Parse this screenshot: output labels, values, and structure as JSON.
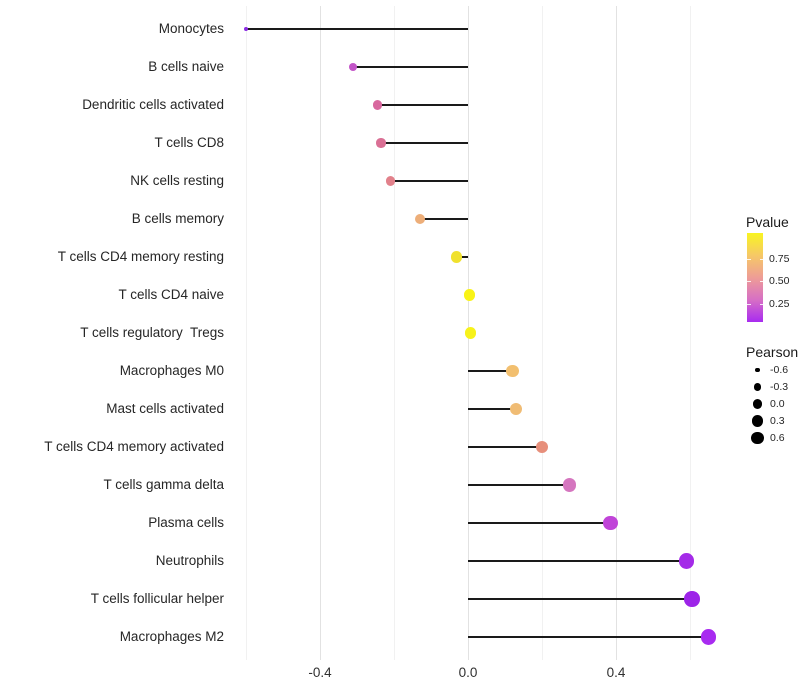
{
  "figure": {
    "background": "#FFFFFF"
  },
  "chart_data": {
    "type": "scatter",
    "subtype": "horizontal-lollipop",
    "title": "",
    "xlabel": "",
    "ylabel": "",
    "xlim": [
      -0.68,
      0.72
    ],
    "grid": {
      "values": [
        -0.6,
        -0.4,
        -0.2,
        0.0,
        0.2,
        0.4,
        0.6
      ],
      "major": [
        -0.4,
        0.0,
        0.4
      ],
      "horizontal": false
    },
    "x_ticks": [
      {
        "label": "-0.4",
        "value": -0.4
      },
      {
        "label": "0.0",
        "value": 0.0
      },
      {
        "label": "0.4",
        "value": 0.4
      }
    ],
    "categories": [
      "Monocytes",
      "B cells naive",
      "Dendritic cells activated",
      "T cells CD8",
      "NK cells resting",
      "B cells memory",
      "T cells CD4 memory resting",
      "T cells CD4 naive",
      "T cells regulatory  Tregs",
      "Macrophages M0",
      "Mast cells activated",
      "T cells CD4 memory activated",
      "T cells gamma delta",
      "Plasma cells",
      "Neutrophils",
      "T cells follicular helper",
      "Macrophages M2"
    ],
    "series": [
      {
        "name": "Pearson",
        "values": [
          -0.6,
          -0.31,
          -0.245,
          -0.235,
          -0.21,
          -0.13,
          -0.03,
          0.004,
          0.006,
          0.12,
          0.13,
          0.2,
          0.275,
          0.385,
          0.59,
          0.605,
          0.65
        ]
      }
    ],
    "point_colors": [
      "#8A2BE2",
      "#C355C8",
      "#D8689E",
      "#DA7095",
      "#E2818B",
      "#EDAE79",
      "#F0E12E",
      "#F9F316",
      "#F7F21A",
      "#F2BF6F",
      "#F0BC74",
      "#E78F7B",
      "#D576BF",
      "#C044D8",
      "#A42BE8",
      "#9D24E8",
      "#A82BF0"
    ],
    "stem_color": "#1A1A1A",
    "legend_pvalue": {
      "title": "Pvalue",
      "ticks": [
        "0.75",
        "0.50",
        "0.25"
      ],
      "gradient": [
        "#F8F421",
        "#F6C966",
        "#EE9D96",
        "#D76FC5",
        "#A82BF0"
      ]
    },
    "legend_pearson": {
      "title": "Pearson",
      "ticks": [
        "-0.6",
        "-0.3",
        "0.0",
        "0.3",
        "0.6"
      ],
      "values": [
        -0.6,
        -0.3,
        0.0,
        0.3,
        0.6
      ],
      "dot_color": "#000000"
    }
  }
}
